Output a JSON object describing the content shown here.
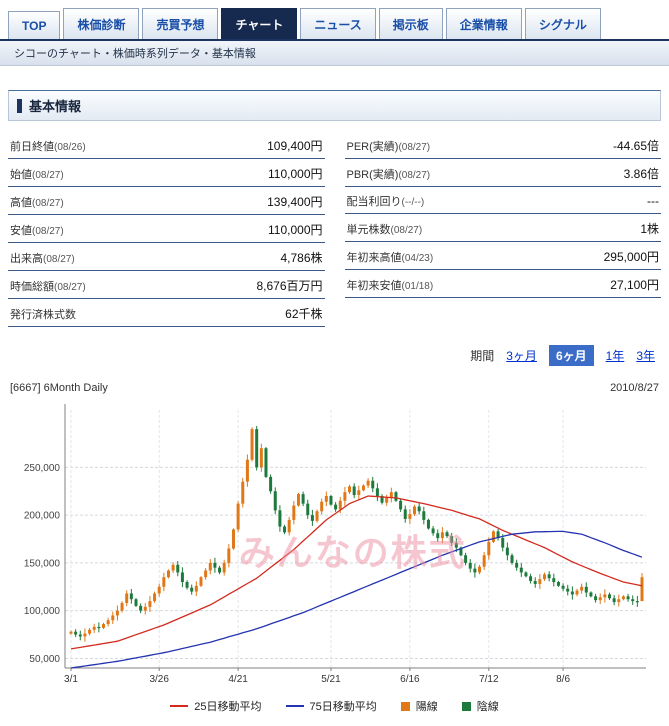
{
  "tabs": [
    {
      "label": "TOP",
      "active": false
    },
    {
      "label": "株価診断",
      "active": false
    },
    {
      "label": "売買予想",
      "active": false
    },
    {
      "label": "チャート",
      "active": true
    },
    {
      "label": "ニュース",
      "active": false
    },
    {
      "label": "掲示板",
      "active": false
    },
    {
      "label": "企業情報",
      "active": false
    },
    {
      "label": "シグナル",
      "active": false
    }
  ],
  "breadcrumb": "シコーのチャート・株価時系列データ・基本情報",
  "section_title": "基本情報",
  "info_left": [
    {
      "label": "前日終値",
      "date": "(08/26)",
      "value": "109,400円"
    },
    {
      "label": "始値",
      "date": "(08/27)",
      "value": "110,000円"
    },
    {
      "label": "高値",
      "date": "(08/27)",
      "value": "139,400円"
    },
    {
      "label": "安値",
      "date": "(08/27)",
      "value": "110,000円"
    },
    {
      "label": "出来高",
      "date": "(08/27)",
      "value": "4,786株"
    },
    {
      "label": "時価総額",
      "date": "(08/27)",
      "value": "8,676百万円"
    },
    {
      "label": "発行済株式数",
      "date": "",
      "value": "62千株"
    }
  ],
  "info_right": [
    {
      "label": "PER(実績)",
      "date": "(08/27)",
      "value": "-44.65倍"
    },
    {
      "label": "PBR(実績)",
      "date": "(08/27)",
      "value": "3.86倍"
    },
    {
      "label": "配当利回り",
      "date": "(--/--)",
      "value": "---"
    },
    {
      "label": "単元株数",
      "date": "(08/27)",
      "value": "1株"
    },
    {
      "label": "年初来高値",
      "date": "(04/23)",
      "value": "295,000円"
    },
    {
      "label": "年初来安値",
      "date": "(01/18)",
      "value": "27,100円"
    }
  ],
  "period": {
    "label": "期間",
    "options": [
      {
        "label": "3ヶ月",
        "active": false
      },
      {
        "label": "6ヶ月",
        "active": true
      },
      {
        "label": "1年",
        "active": false
      },
      {
        "label": "3年",
        "active": false
      }
    ]
  },
  "chart_data": {
    "type": "candlestick",
    "title": "[6667] 6Month Daily",
    "date_label": "2010/8/27",
    "watermark": "みんなの株式",
    "y_ticks": [
      50000,
      100000,
      150000,
      200000,
      250000
    ],
    "y_range": [
      40000,
      310000
    ],
    "x_ticks": [
      {
        "i": 0,
        "label": "3/1"
      },
      {
        "i": 19,
        "label": "3/26"
      },
      {
        "i": 36,
        "label": "4/21"
      },
      {
        "i": 56,
        "label": "5/21"
      },
      {
        "i": 73,
        "label": "6/16"
      },
      {
        "i": 90,
        "label": "7/12"
      },
      {
        "i": 106,
        "label": "8/6"
      }
    ],
    "closes": [
      78000,
      75000,
      73000,
      76000,
      80000,
      83000,
      82000,
      86000,
      90000,
      95000,
      100000,
      108000,
      118000,
      112000,
      105000,
      100000,
      104000,
      110000,
      118000,
      125000,
      135000,
      142000,
      148000,
      140000,
      130000,
      124000,
      120000,
      126000,
      135000,
      142000,
      150000,
      145000,
      140000,
      150000,
      165000,
      185000,
      212000,
      235000,
      258000,
      290000,
      250000,
      270000,
      240000,
      225000,
      205000,
      188000,
      182000,
      195000,
      210000,
      222000,
      212000,
      200000,
      194000,
      204000,
      214000,
      220000,
      211000,
      206000,
      215000,
      224000,
      230000,
      221000,
      226000,
      231000,
      236000,
      228000,
      220000,
      213000,
      218000,
      224000,
      215000,
      206000,
      196000,
      201000,
      209000,
      204000,
      195000,
      186000,
      181000,
      176000,
      182000,
      178000,
      171000,
      166000,
      158000,
      150000,
      144000,
      140000,
      146000,
      158000,
      172000,
      183000,
      176000,
      166000,
      158000,
      150000,
      145000,
      140000,
      136000,
      131000,
      128000,
      133000,
      138000,
      134000,
      130000,
      126000,
      123000,
      120000,
      117000,
      121000,
      125000,
      119000,
      115000,
      111000,
      114000,
      117000,
      113000,
      109000,
      112000,
      115000,
      112000,
      110000,
      109400,
      135000
    ],
    "last_candle_ohlc": {
      "open": 110000,
      "high": 139400,
      "low": 110000,
      "close": 135000
    },
    "ma25_anchors": [
      [
        0,
        60000
      ],
      [
        10,
        68000
      ],
      [
        20,
        85000
      ],
      [
        30,
        106000
      ],
      [
        40,
        134000
      ],
      [
        48,
        164000
      ],
      [
        55,
        195000
      ],
      [
        60,
        212000
      ],
      [
        64,
        220000
      ],
      [
        70,
        218000
      ],
      [
        76,
        212000
      ],
      [
        82,
        205000
      ],
      [
        88,
        196000
      ],
      [
        93,
        184000
      ],
      [
        97,
        176000
      ],
      [
        102,
        166000
      ],
      [
        108,
        151000
      ],
      [
        114,
        139000
      ],
      [
        119,
        130000
      ],
      [
        123,
        126000
      ]
    ],
    "ma75_anchors": [
      [
        0,
        40000
      ],
      [
        10,
        47000
      ],
      [
        20,
        56000
      ],
      [
        30,
        67000
      ],
      [
        40,
        81000
      ],
      [
        50,
        98000
      ],
      [
        60,
        118000
      ],
      [
        70,
        138000
      ],
      [
        80,
        158000
      ],
      [
        88,
        172000
      ],
      [
        95,
        180000
      ],
      [
        100,
        182500
      ],
      [
        106,
        183000
      ],
      [
        110,
        180000
      ],
      [
        115,
        171000
      ],
      [
        119,
        163000
      ],
      [
        123,
        156000
      ]
    ],
    "colors": {
      "up": "#e07818",
      "down": "#1d7a3c",
      "ma25": "#d42a1e",
      "ma75": "#2433b0",
      "grid": "#d4d9e0",
      "axis": "#808080",
      "watermark": "#ee8fa2"
    },
    "legend": [
      {
        "label": "25日移動平均",
        "type": "line",
        "color": "#d42a1e"
      },
      {
        "label": "75日移動平均",
        "type": "line",
        "color": "#2433b0"
      },
      {
        "label": "陽線",
        "type": "box",
        "color": "#e07818"
      },
      {
        "label": "陰線",
        "type": "box",
        "color": "#1d7a3c"
      }
    ]
  }
}
